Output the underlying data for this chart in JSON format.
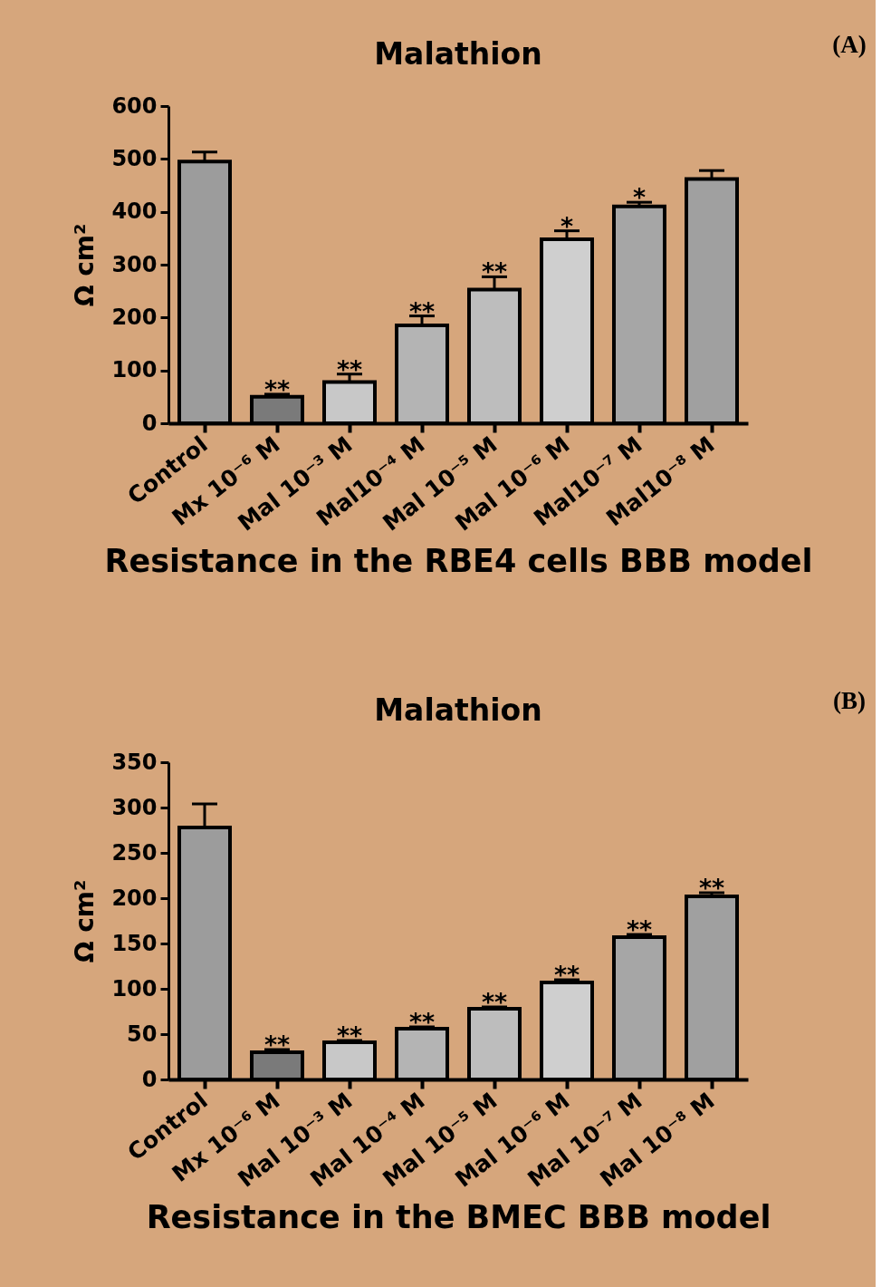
{
  "chart_data": [
    {
      "type": "bar",
      "title": "Malathion",
      "xlabel": "Resistance in the RBE4 cells BBB model",
      "ylabel": "Ω cm²",
      "categories": [
        "Control",
        "Mx 10⁻⁶ M",
        "Mal 10⁻³ M",
        "Mal10⁻⁴ M",
        "Mal 10⁻⁵ M",
        "Mal 10⁻⁶ M",
        "Mal10⁻⁷ M",
        "Mal10⁻⁸ M"
      ],
      "values": [
        495,
        50,
        78,
        185,
        253,
        348,
        410,
        462
      ],
      "errors": [
        18,
        5,
        15,
        18,
        24,
        16,
        8,
        16
      ],
      "colors": [
        "#9c9c9c",
        "#7a7a7a",
        "#c8c8c8",
        "#b4b4b4",
        "#bdbdbd",
        "#cfcfcf",
        "#a6a6a6",
        "#a0a0a0"
      ],
      "ylim": [
        0,
        600
      ],
      "yticks": [
        0,
        100,
        200,
        300,
        400,
        500,
        600
      ],
      "annotations": [
        {
          "text": "**",
          "x": "Mx 10⁻⁶ M",
          "y": 55
        },
        {
          "text": "**",
          "x": "Mal 10⁻³ M",
          "y": 93
        },
        {
          "text": "**",
          "x": "Mal10⁻⁴ M",
          "y": 203
        },
        {
          "text": "**",
          "x": "Mal 10⁻⁵ M",
          "y": 277
        },
        {
          "text": "*",
          "x": "Mal 10⁻⁶ M",
          "y": 364
        },
        {
          "text": "*",
          "x": "Mal10⁻⁷ M",
          "y": 418
        },
        "(A)"
      ]
    },
    {
      "type": "bar",
      "title": "Malathion",
      "xlabel": "Resistance in the BMEC BBB model",
      "ylabel": "Ω cm²",
      "categories": [
        "Control",
        "Mx 10⁻⁶ M",
        "Mal 10⁻³ M",
        "Mal 10⁻⁴ M",
        "Mal 10⁻⁵ M",
        "Mal 10⁻⁶ M",
        "Mal 10⁻⁷ M",
        "Mal 10⁻⁸ M"
      ],
      "values": [
        278,
        30,
        41,
        56,
        78,
        107,
        157,
        202
      ],
      "errors": [
        26,
        3,
        2,
        2,
        2,
        3,
        3,
        4
      ],
      "colors": [
        "#9c9c9c",
        "#7a7a7a",
        "#c8c8c8",
        "#b4b4b4",
        "#bdbdbd",
        "#cfcfcf",
        "#a6a6a6",
        "#a0a0a0"
      ],
      "ylim": [
        0,
        350
      ],
      "yticks": [
        0,
        50,
        100,
        150,
        200,
        250,
        300,
        350
      ],
      "annotations": [
        {
          "text": "**",
          "x": "Mx 10⁻⁶ M",
          "y": 33
        },
        {
          "text": "**",
          "x": "Mal 10⁻³ M",
          "y": 43
        },
        {
          "text": "**",
          "x": "Mal 10⁻⁴ M",
          "y": 58
        },
        {
          "text": "**",
          "x": "Mal 10⁻⁵ M",
          "y": 80
        },
        {
          "text": "**",
          "x": "Mal 10⁻⁶ M",
          "y": 110
        },
        {
          "text": "**",
          "x": "Mal 10⁻⁷ M",
          "y": 160
        },
        {
          "text": "**",
          "x": "Mal 10⁻⁸ M",
          "y": 206
        },
        "(B)"
      ]
    }
  ]
}
